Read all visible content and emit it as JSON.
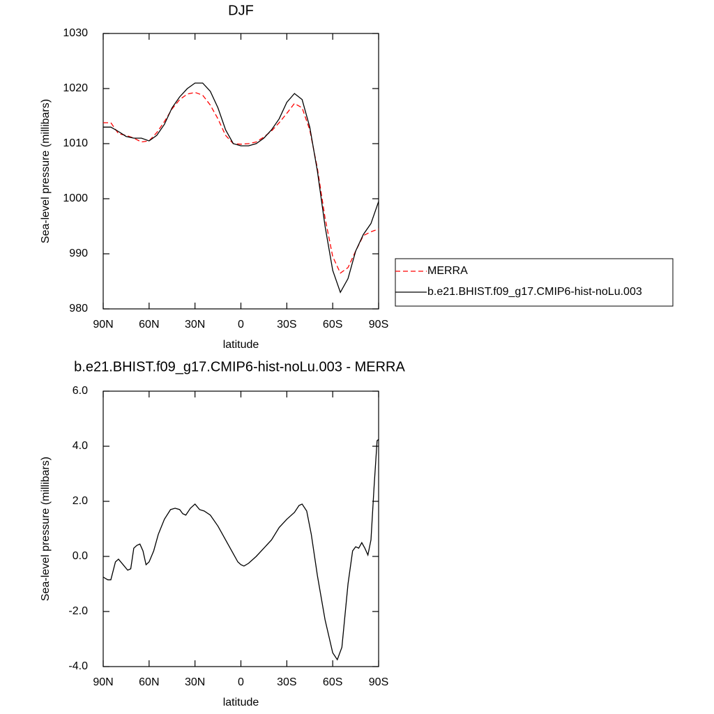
{
  "chart_data": [
    {
      "type": "line",
      "title": "DJF",
      "xlabel": "latitude",
      "ylabel": "Sea-level pressure (millibars)",
      "x": [
        90,
        85,
        80,
        75,
        70,
        65,
        60,
        55,
        50,
        45,
        40,
        35,
        30,
        25,
        20,
        15,
        10,
        5,
        0,
        -5,
        -10,
        -15,
        -20,
        -25,
        -30,
        -35,
        -40,
        -45,
        -50,
        -55,
        -60,
        -65,
        -70,
        -75,
        -80,
        -85,
        -90
      ],
      "xlim": [
        90,
        -90
      ],
      "xticks": [
        {
          "value": 90,
          "label": "90N"
        },
        {
          "value": 60,
          "label": "60N"
        },
        {
          "value": 30,
          "label": "30N"
        },
        0,
        {
          "value": -30,
          "label": "30S"
        },
        {
          "value": -60,
          "label": "60S"
        },
        {
          "value": -90,
          "label": "90S"
        }
      ],
      "ylim": [
        980,
        1030
      ],
      "yticks": [
        980,
        990,
        1000,
        1010,
        1020,
        1030
      ],
      "legend": "outside-right",
      "series": [
        {
          "name": "MERRA",
          "color": "#ff0000",
          "dash": true,
          "values": [
            1013.8,
            1013.8,
            1011.8,
            1011.5,
            1011.0,
            1010.3,
            1010.5,
            1012.0,
            1014.0,
            1016.3,
            1018.0,
            1019.0,
            1019.3,
            1018.8,
            1017.0,
            1014.5,
            1011.5,
            1010.0,
            1009.9,
            1010.0,
            1010.3,
            1011.2,
            1012.3,
            1013.8,
            1015.5,
            1017.3,
            1016.5,
            1012.5,
            1005.5,
            996.5,
            989.5,
            986.5,
            987.5,
            990.5,
            993.3,
            994.0,
            994.5
          ]
        },
        {
          "name": "b.e21.BHIST.f09_g17.CMIP6-hist-noLu.003",
          "color": "#000000",
          "dash": false,
          "values": [
            1013.0,
            1013.0,
            1012.2,
            1011.3,
            1011.0,
            1011.0,
            1010.5,
            1011.5,
            1013.5,
            1016.5,
            1018.5,
            1020.0,
            1021.0,
            1021.0,
            1019.5,
            1016.5,
            1012.5,
            1010.0,
            1009.6,
            1009.6,
            1010.0,
            1011.0,
            1012.5,
            1014.5,
            1017.5,
            1019.1,
            1018.0,
            1013.0,
            1005.0,
            995.0,
            987.0,
            983.0,
            985.5,
            990.5,
            993.5,
            995.5,
            999.5
          ]
        }
      ]
    },
    {
      "type": "line",
      "title": "b.e21.BHIST.f09_g17.CMIP6-hist-noLu.003 - MERRA",
      "xlabel": "latitude",
      "ylabel": "Sea-level pressure (millibars)",
      "x": [
        90,
        87,
        85,
        82,
        80,
        77,
        74,
        72,
        70,
        68,
        66,
        64,
        62,
        60,
        57,
        54,
        50,
        46,
        43,
        40,
        38,
        36,
        33,
        30,
        27,
        24,
        20,
        15,
        10,
        5,
        2,
        0,
        -2,
        -5,
        -10,
        -15,
        -20,
        -25,
        -30,
        -35,
        -38,
        -40,
        -43,
        -46,
        -50,
        -55,
        -60,
        -63,
        -66,
        -70,
        -73,
        -75,
        -77,
        -79,
        -81,
        -83,
        -85,
        -87,
        -89,
        -90
      ],
      "xlim": [
        90,
        -90
      ],
      "xticks": [
        {
          "value": 90,
          "label": "90N"
        },
        {
          "value": 60,
          "label": "60N"
        },
        {
          "value": 30,
          "label": "30N"
        },
        0,
        {
          "value": -30,
          "label": "30S"
        },
        {
          "value": -60,
          "label": "60S"
        },
        {
          "value": -90,
          "label": "90S"
        }
      ],
      "ylim": [
        -4,
        6
      ],
      "yticks": [
        {
          "value": -4,
          "label": "-4.0"
        },
        {
          "value": -2,
          "label": "-2.0"
        },
        {
          "value": 0,
          "label": "0.0"
        },
        {
          "value": 2,
          "label": "2.0"
        },
        {
          "value": 4,
          "label": "4.0"
        },
        {
          "value": 6,
          "label": "6.0"
        }
      ],
      "series": [
        {
          "color": "#000000",
          "dash": false,
          "values": [
            -0.75,
            -0.85,
            -0.85,
            -0.2,
            -0.1,
            -0.3,
            -0.5,
            -0.45,
            0.3,
            0.4,
            0.45,
            0.2,
            -0.3,
            -0.2,
            0.2,
            0.8,
            1.35,
            1.7,
            1.75,
            1.7,
            1.55,
            1.5,
            1.75,
            1.9,
            1.7,
            1.65,
            1.5,
            1.1,
            0.6,
            0.1,
            -0.2,
            -0.3,
            -0.35,
            -0.25,
            0.0,
            0.3,
            0.6,
            1.05,
            1.35,
            1.6,
            1.85,
            1.9,
            1.65,
            0.8,
            -0.7,
            -2.3,
            -3.5,
            -3.75,
            -3.3,
            -1.0,
            0.2,
            0.35,
            0.3,
            0.5,
            0.3,
            0.05,
            0.6,
            2.5,
            4.2,
            4.25
          ]
        }
      ]
    }
  ]
}
